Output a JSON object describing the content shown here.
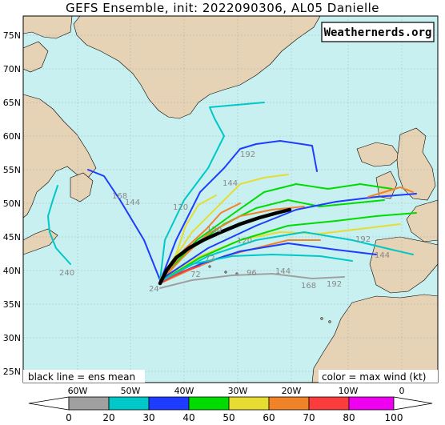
{
  "title": "GEFS Ensemble, init: 2022090306, AL05 Danielle",
  "brand": "Weathernerds.org",
  "legend_left": "black line = ens mean",
  "legend_right": "color = max wind (kt)",
  "lat_labels": [
    "75N",
    "70N",
    "65N",
    "60N",
    "55N",
    "50N",
    "45N",
    "40N",
    "35N",
    "30N",
    "25N"
  ],
  "lon_labels": [
    "60W",
    "50W",
    "40W",
    "30W",
    "20W",
    "10W",
    "0"
  ],
  "colorbar": {
    "ticks": [
      "0",
      "20",
      "30",
      "40",
      "50",
      "60",
      "70",
      "80",
      "100"
    ],
    "colors": [
      "#a0a0a0",
      "#00c8c8",
      "#1e3cff",
      "#00dc00",
      "#e6dc32",
      "#f08228",
      "#fa3c3c",
      "#f000f0"
    ]
  },
  "track_labels": [
    "240",
    "192",
    "168",
    "144",
    "144",
    "144",
    "120",
    "120",
    "96",
    "72",
    "72",
    "168",
    "192",
    "120",
    "144",
    "192",
    "24"
  ],
  "colors": {
    "ocean": "#c8f0f0",
    "land": "#e6d2b4"
  }
}
